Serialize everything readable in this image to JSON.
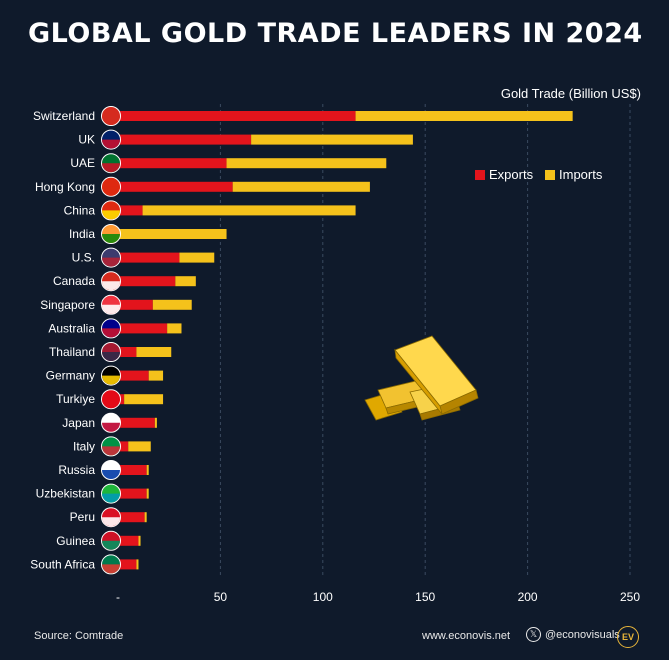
{
  "title": "GLOBAL GOLD TRADE LEADERS IN 2024",
  "unit_label": "Gold Trade (Billion US$)",
  "source": "Source: Comtrade",
  "website": "www.econovis.net",
  "social_handle": "@econovisuals",
  "logo_text": "EV",
  "colors": {
    "background": "#0f1a2b",
    "exports": "#e3141c",
    "imports": "#f5c21b",
    "grid": "#3a4a60"
  },
  "chart_data": {
    "type": "bar",
    "orientation": "horizontal",
    "stacked": true,
    "title": "GLOBAL GOLD TRADE LEADERS IN 2024",
    "xlabel": "Gold Trade (Billion US$)",
    "xlim": [
      0,
      250
    ],
    "xticks": [
      "-",
      "50",
      "100",
      "150",
      "200",
      "250"
    ],
    "grid": true,
    "legend_position": "right",
    "categories": [
      "Switzerland",
      "UK",
      "UAE",
      "Hong Kong",
      "China",
      "India",
      "U.S.",
      "Canada",
      "Singapore",
      "Australia",
      "Thailand",
      "Germany",
      "Turkiye",
      "Japan",
      "Italy",
      "Russia",
      "Uzbekistan",
      "Peru",
      "Guinea",
      "South Africa"
    ],
    "series": [
      {
        "name": "Exports",
        "values": [
          116,
          65,
          53,
          56,
          12,
          0,
          30,
          28,
          17,
          24,
          9,
          15,
          3,
          18,
          5,
          14,
          14,
          13,
          10,
          9
        ]
      },
      {
        "name": "Imports",
        "values": [
          106,
          79,
          78,
          67,
          104,
          53,
          17,
          10,
          19,
          7,
          17,
          7,
          19,
          1,
          11,
          1,
          1,
          1,
          1,
          1
        ]
      }
    ]
  }
}
